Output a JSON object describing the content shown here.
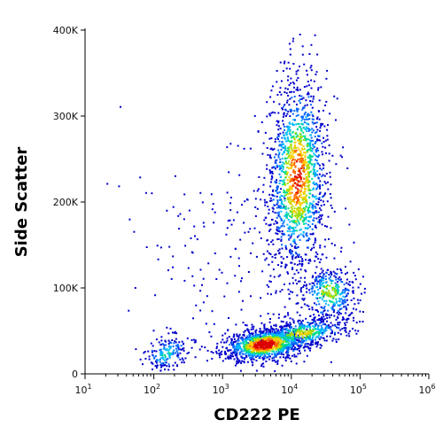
{
  "chart_data": {
    "type": "scatter",
    "title": "",
    "xlabel": "CD222 PE",
    "ylabel": "Side Scatter",
    "x_scale": "log",
    "xlim": [
      10,
      1000000
    ],
    "ylim": [
      0,
      400000
    ],
    "x_ticks": [
      {
        "value": 10,
        "base": "10",
        "exp": "1"
      },
      {
        "value": 100,
        "base": "10",
        "exp": "2"
      },
      {
        "value": 1000,
        "base": "10",
        "exp": "3"
      },
      {
        "value": 10000,
        "base": "10",
        "exp": "4"
      },
      {
        "value": 100000,
        "base": "10",
        "exp": "5"
      },
      {
        "value": 1000000,
        "base": "10",
        "exp": "6"
      }
    ],
    "y_ticks": [
      {
        "value": 0,
        "label": "0"
      },
      {
        "value": 100000,
        "label": "100K"
      },
      {
        "value": 200000,
        "label": "200K"
      },
      {
        "value": 300000,
        "label": "300K"
      },
      {
        "value": 400000,
        "label": "400K"
      }
    ],
    "grid": false,
    "legend": "none",
    "colormap": [
      "#0000cc",
      "#0066ff",
      "#00bbff",
      "#00dd88",
      "#aadd00",
      "#ffcc00",
      "#ff6600",
      "#dd0000"
    ],
    "populations": [
      {
        "x_center": 150,
        "y_center": 25000,
        "count": 180
      },
      {
        "x_center": 4000,
        "y_center": 35000,
        "count": 1100
      },
      {
        "x_center": 14000,
        "y_center": 48000,
        "count": 500
      },
      {
        "x_center": 35000,
        "y_center": 95000,
        "count": 350
      },
      {
        "x_center": 12000,
        "y_center": 230000,
        "count": 1500
      },
      {
        "x_center": 1500,
        "y_center": 150000,
        "count": 220
      }
    ]
  }
}
